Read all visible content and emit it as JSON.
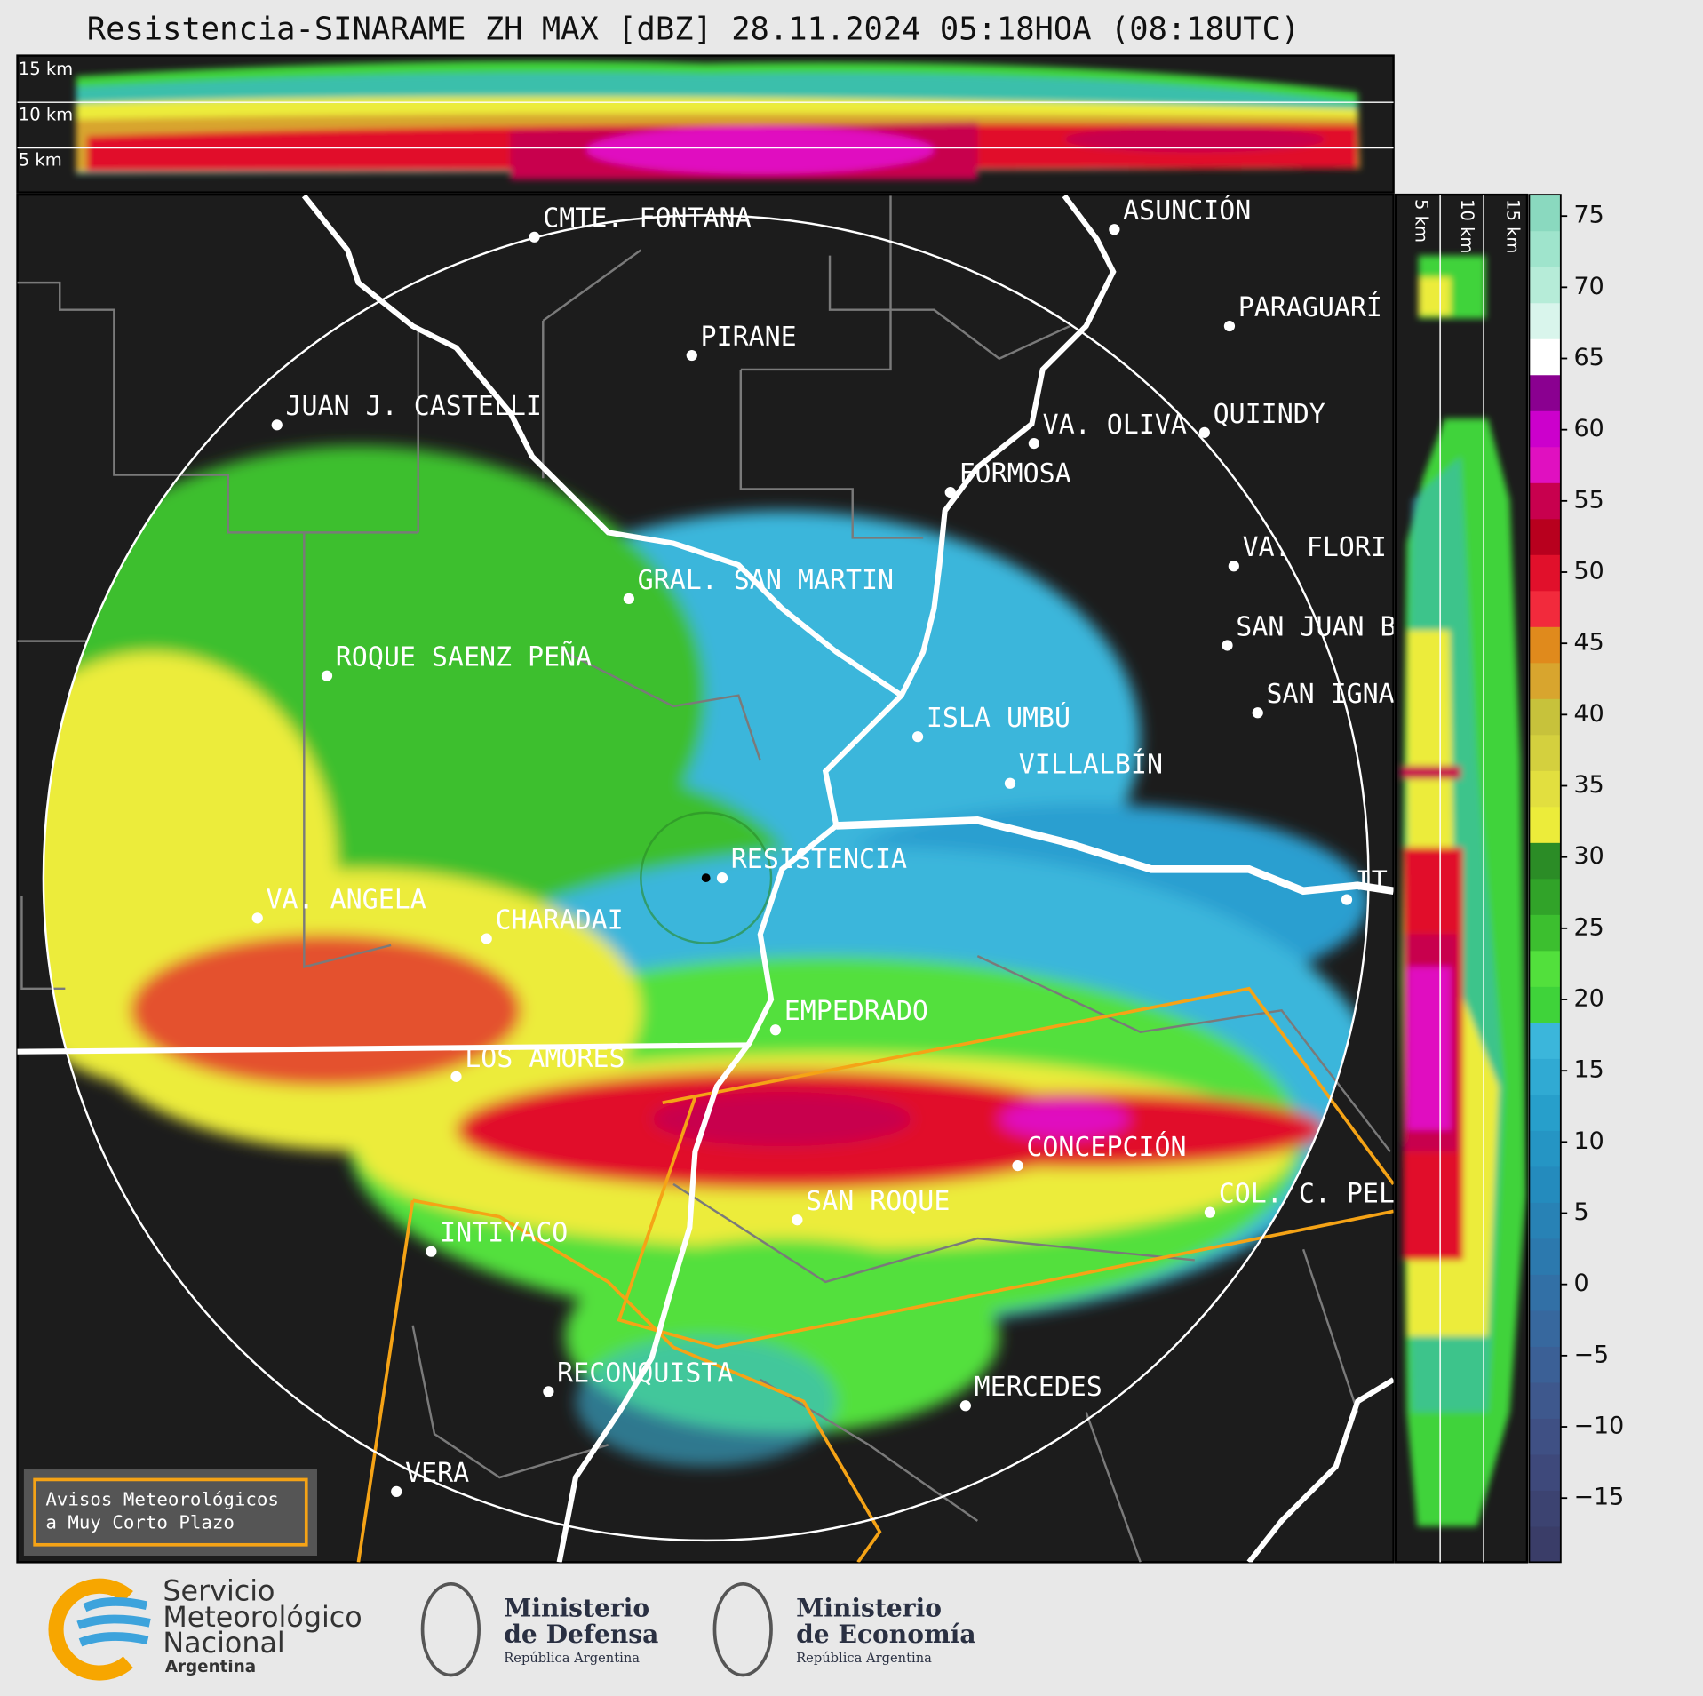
{
  "title": "Resistencia-SINARAME ZH MAX [dBZ] 28.11.2024 05:18HOA (08:18UTC)",
  "top_panel_heights": [
    "15 km",
    "10 km",
    "5 km"
  ],
  "side_panel_heights": [
    "5 km",
    "10 km",
    "15 km"
  ],
  "cities": [
    "CMTE. FONTANA",
    "PIRANE",
    "JUAN J. CASTELLI",
    "GRAL. SAN MARTIN",
    "ROQUE SAENZ PEÑA",
    "VA. ANGELA",
    "CHARADAI",
    "RESISTENCIA",
    "EMPEDRADO",
    "LOS AMORES",
    "CONCEPCIÓN",
    "SAN ROQUE",
    "INTIYACO",
    "COL. C. PEL",
    "RECONQUISTA",
    "MERCEDES",
    "VERA",
    "ASUNCIÓN",
    "PARAGUARÍ",
    "VA. OLIVA",
    "QUIINDY",
    "FORMOSA",
    "VA. FLORI",
    "SAN JUAN B",
    "SAN IGNA",
    "ISLA UMBÚ",
    "VILLALBÍN",
    "IT"
  ],
  "colorbar": {
    "clim": [
      -19.5,
      76.5
    ],
    "ticks": [
      75,
      70,
      65,
      60,
      55,
      50,
      45,
      40,
      35,
      30,
      25,
      20,
      15,
      10,
      5,
      0,
      {
        "value": -5,
        "label": "−5"
      },
      {
        "value": -10,
        "label": "−10"
      },
      {
        "value": -15,
        "label": "−15"
      }
    ],
    "colors": [
      "#3a3d68",
      "#3c4371",
      "#3e497b",
      "#3f5084",
      "#3e588d",
      "#3b6096",
      "#37689e",
      "#3270a6",
      "#2c79ae",
      "#2882b5",
      "#248bbd",
      "#2595c4",
      "#279fcb",
      "#30aad3",
      "#3bb6db",
      "#3fd33a",
      "#52e03c",
      "#3cbf2f",
      "#31a329",
      "#2b8c26",
      "#ecec3a",
      "#e2df3f",
      "#d4d03e",
      "#c7c23b",
      "#d8a52e",
      "#e08a1c",
      "#f22a3c",
      "#e1102b",
      "#b8001e",
      "#c8004e",
      "#e010c0",
      "#cc00cc",
      "#8a0090",
      "#ffffff",
      "#d9f5ec",
      "#b6ecd8",
      "#9fe4cc",
      "#8ad9bf"
    ]
  },
  "warning_box": [
    "Avisos Meteorológicos",
    "a Muy Corto Plazo"
  ],
  "logos": [
    {
      "lines": [
        "Servicio",
        "Meteorológico",
        "Nacional"
      ],
      "sub": "Argentina"
    },
    {
      "lines": [
        "Ministerio",
        "de Defensa"
      ],
      "sub": "República Argentina"
    },
    {
      "lines": [
        "Ministerio",
        "de Economía"
      ],
      "sub": "República Argentina"
    }
  ]
}
